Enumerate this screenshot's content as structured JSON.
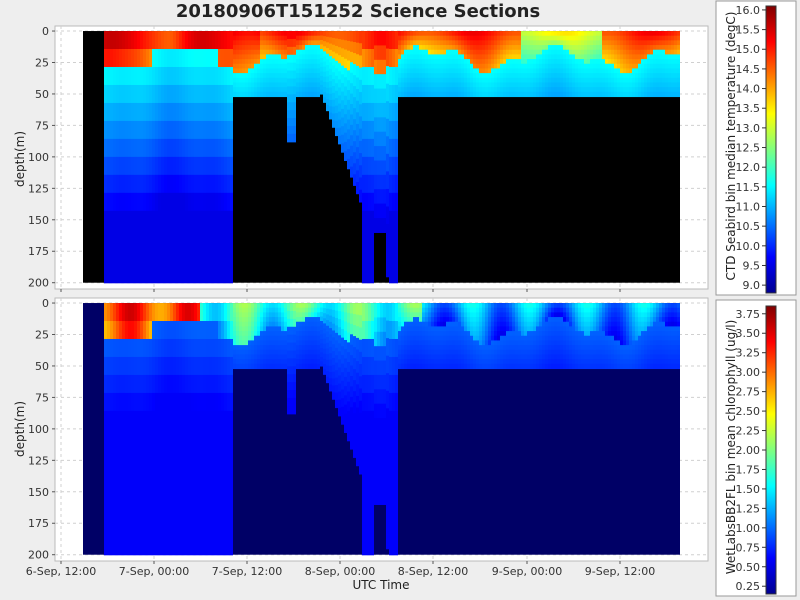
{
  "title": "20180906T151252 Science Sections",
  "chart_data": [
    {
      "type": "heatmap",
      "title": "20180906T151252 Science Sections",
      "xlabel": "UTC Time",
      "ylabel": "depth(m)",
      "x_ticks": [
        "6-Sep, 12:00",
        "7-Sep, 00:00",
        "7-Sep, 12:00",
        "8-Sep, 00:00",
        "8-Sep, 12:00",
        "9-Sep, 00:00",
        "9-Sep, 12:00"
      ],
      "y_ticks": [
        0,
        25,
        50,
        75,
        100,
        125,
        150,
        175,
        200
      ],
      "ylim": [
        205,
        -4
      ],
      "grid": true,
      "colorbar": {
        "label": "CTD Seabird bin median temperature (degC)",
        "ticks": [
          "16.0",
          "15.5",
          "15.0",
          "14.5",
          "14.0",
          "13.5",
          "13.0",
          "12.5",
          "12.0",
          "11.5",
          "11.0",
          "10.5",
          "10.0",
          "9.5",
          "9.0"
        ],
        "range": [
          8.8,
          16.1
        ],
        "colormap": "jet"
      },
      "missing_color": "#000000"
    },
    {
      "type": "heatmap",
      "xlabel": "UTC Time",
      "ylabel": "depth(m)",
      "x_ticks": [
        "6-Sep, 12:00",
        "7-Sep, 00:00",
        "7-Sep, 12:00",
        "8-Sep, 00:00",
        "8-Sep, 12:00",
        "9-Sep, 00:00",
        "9-Sep, 12:00"
      ],
      "y_ticks": [
        0,
        25,
        50,
        75,
        100,
        125,
        150,
        175,
        200
      ],
      "ylim": [
        205,
        -4
      ],
      "grid": true,
      "colorbar": {
        "label": "WetLabsBB2FL bin mean chlorophyll (ug/l)",
        "ticks": [
          "3.75",
          "3.50",
          "3.25",
          "3.00",
          "2.75",
          "2.50",
          "2.25",
          "2.00",
          "1.75",
          "1.50",
          "1.25",
          "1.00",
          "0.75",
          "0.50",
          "0.25"
        ],
        "range": [
          0.15,
          3.85
        ],
        "colormap": "jet"
      },
      "missing_color": "#000066"
    }
  ]
}
